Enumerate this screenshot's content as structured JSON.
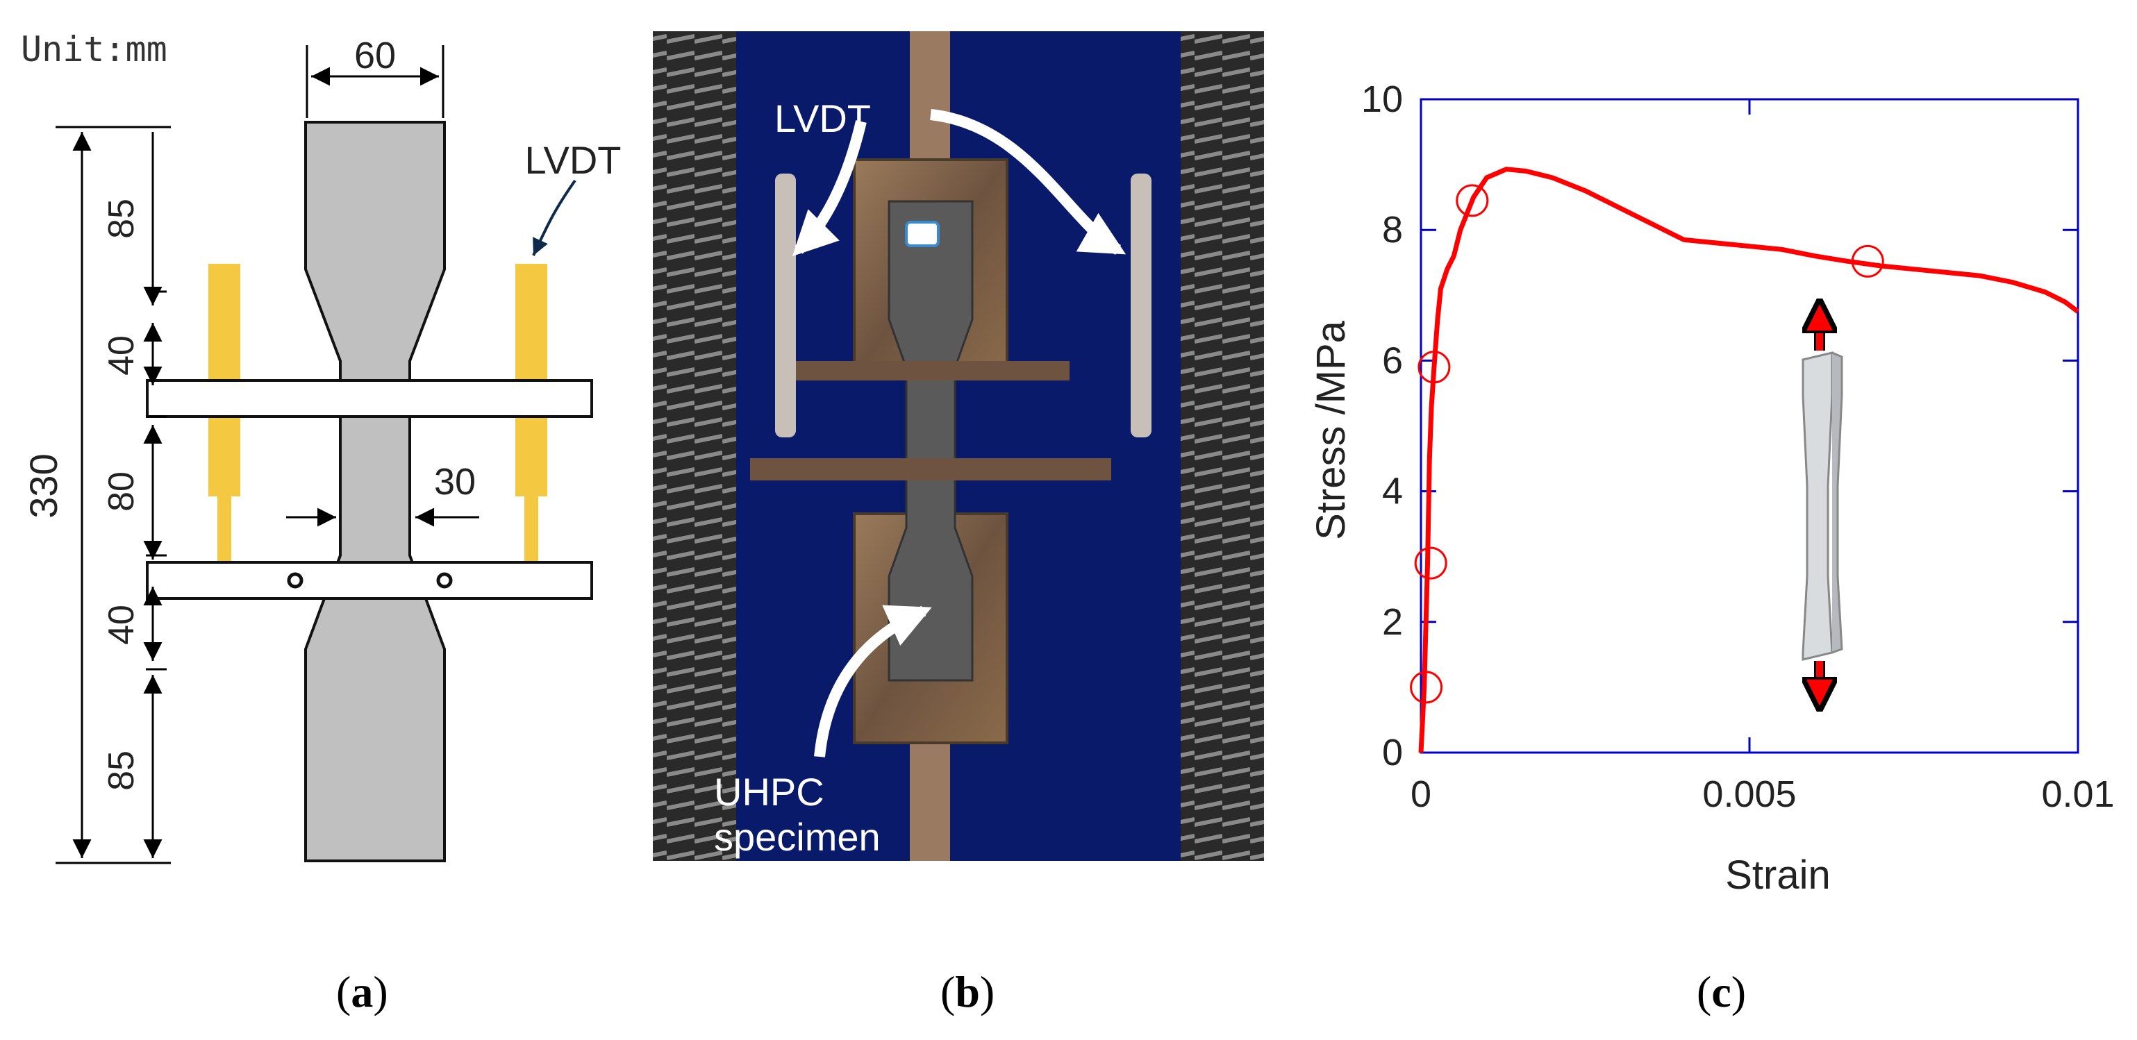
{
  "panel_a": {
    "unit_label": "Unit:mm",
    "total_height": "330",
    "seg_top": "85",
    "seg_taper_top": "40",
    "seg_gauge": "80",
    "seg_taper_bottom": "40",
    "seg_bottom": "85",
    "width_grip": "60",
    "width_gauge": "30",
    "lvdt_label": "LVDT",
    "caption": "a",
    "colors": {
      "specimen": "#c0c0c0",
      "lvdt": "#f5c842",
      "arrow": "#0e2a4a"
    }
  },
  "panel_b": {
    "lvdt_label": "LVDT",
    "specimen_label_line1": "UHPC",
    "specimen_label_line2": "specimen",
    "caption": "b",
    "colors": {
      "backdrop": "#0a1a6a",
      "frame": "#8a6a4a",
      "rack": "#555555"
    }
  },
  "panel_c": {
    "caption": "c",
    "chart_data": {
      "type": "line",
      "xlabel": "Strain",
      "ylabel": "Stress /MPa",
      "xlim": [
        0,
        0.01
      ],
      "ylim": [
        0,
        10
      ],
      "xticks": [
        "0",
        "0.005",
        "0.01"
      ],
      "yticks": [
        "0",
        "2",
        "4",
        "6",
        "8",
        "10"
      ],
      "series": [
        {
          "color": "#ff0000",
          "x": [
            0,
            5e-05,
            0.0001,
            0.00013,
            0.00016,
            0.0002,
            0.00025,
            0.0003,
            0.0004,
            0.0005,
            0.0006,
            0.0008,
            0.001,
            0.0013,
            0.0016,
            0.002,
            0.0025,
            0.003,
            0.0035,
            0.004,
            0.0045,
            0.005,
            0.0055,
            0.006,
            0.0065,
            0.007,
            0.0075,
            0.008,
            0.0085,
            0.009,
            0.0095,
            0.0098,
            0.01
          ],
          "y": [
            0,
            1.0,
            2.9,
            4.5,
            5.3,
            5.9,
            6.6,
            7.1,
            7.4,
            7.6,
            8.0,
            8.5,
            8.8,
            8.93,
            8.9,
            8.8,
            8.6,
            8.35,
            8.1,
            7.85,
            7.8,
            7.75,
            7.7,
            7.6,
            7.52,
            7.45,
            7.4,
            7.35,
            7.3,
            7.2,
            7.05,
            6.9,
            6.75
          ]
        }
      ],
      "markers": [
        {
          "x": 8e-05,
          "y": 1.0
        },
        {
          "x": 0.00015,
          "y": 2.9
        },
        {
          "x": 0.0002,
          "y": 5.9
        },
        {
          "x": 0.00078,
          "y": 8.45
        },
        {
          "x": 0.0068,
          "y": 7.52
        }
      ],
      "grid": false,
      "colors": {
        "axes": "#0000cc",
        "marker": "#ff0000"
      }
    }
  }
}
